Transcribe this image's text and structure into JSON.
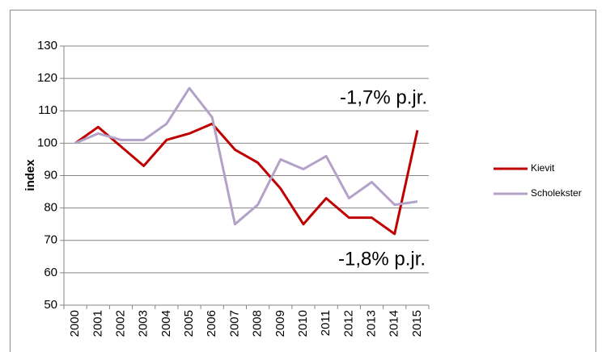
{
  "chart_data": {
    "type": "line",
    "y_label": "index",
    "categories": [
      "2000",
      "2001",
      "2002",
      "2003",
      "2004",
      "2005",
      "2006",
      "2007",
      "2008",
      "2009",
      "2010",
      "2011",
      "2012",
      "2013",
      "2014",
      "2015"
    ],
    "series": [
      {
        "name": "Kievit",
        "color": "#c00000",
        "values": [
          100,
          105,
          99,
          93,
          101,
          103,
          106,
          98,
          94,
          86,
          75,
          83,
          77,
          77,
          72,
          104
        ]
      },
      {
        "name": "Scholekster",
        "color": "#b3a2c7",
        "values": [
          100,
          103,
          101,
          101,
          106,
          117,
          108,
          75,
          81,
          95,
          92,
          96,
          83,
          88,
          81,
          82
        ]
      }
    ],
    "annotations": [
      {
        "text": "-1,7% p.jr.",
        "color": "#b3a2c7"
      },
      {
        "text": "-1,8% p.jr.",
        "color": "#c00000"
      }
    ],
    "ylim": [
      50,
      130
    ],
    "yticks": [
      50,
      60,
      70,
      80,
      90,
      100,
      110,
      120,
      130
    ],
    "grid": true,
    "legend": "right"
  }
}
